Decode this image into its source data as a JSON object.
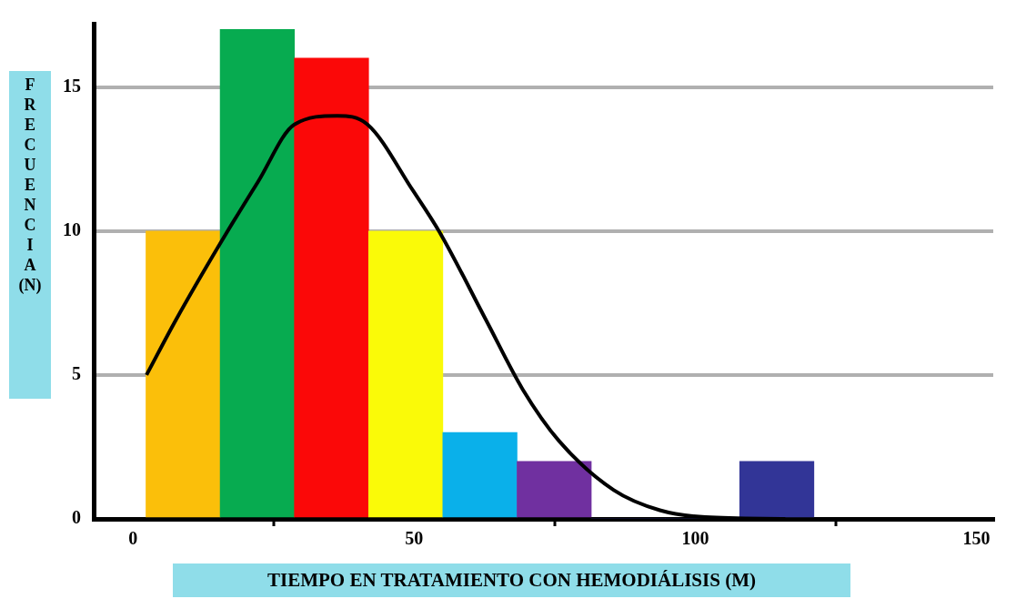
{
  "chart_data": {
    "type": "histogram",
    "xlabel": "TIEMPO EN TRATAMIENTO CON HEMODIÁLISIS (M)",
    "ylabel": "FRECUENCIA (N)",
    "bins": [
      2.3,
      15.5,
      28.7,
      41.9,
      55.1,
      68.3,
      81.5,
      94.7,
      107.9,
      121.1
    ],
    "values": [
      10,
      17,
      16,
      10,
      3,
      2,
      0,
      0,
      2
    ],
    "colors": [
      "#fbbf0a",
      "#07ab50",
      "#fb0808",
      "#fafa08",
      "#0ab0ea",
      "#7030a0",
      "#323597",
      "#323597",
      "#323597"
    ],
    "series": [
      {
        "type": "line",
        "color": "#000000",
        "x": [
          2.4,
          7.6,
          15.3,
          22.2,
          28.7,
          36.3,
          41.7,
          49.8,
          54.7,
          62.8,
          69.3,
          75.8,
          85.5,
          93.7,
          101.8,
          116
        ],
        "values": [
          5.0,
          6.9,
          9.5,
          11.7,
          13.7,
          14.0,
          13.7,
          11.4,
          9.9,
          6.9,
          4.5,
          2.7,
          1.0,
          0.3,
          0.06,
          0.0
        ]
      }
    ],
    "xlim": [
      -7,
      153
    ],
    "xticks": [
      0,
      50,
      100,
      150
    ],
    "ylim": [
      0,
      17.2
    ],
    "yticks": [
      0,
      5,
      10,
      15
    ],
    "grid": "y",
    "legend": false,
    "marker": "none",
    "line_style": "solid"
  }
}
